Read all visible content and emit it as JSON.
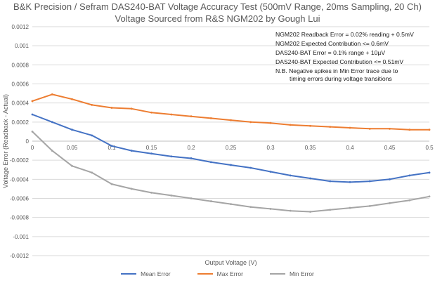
{
  "chart_data": {
    "type": "line",
    "title": "B&K Precision / Sefram DAS240-BAT Voltage Accuracy Test (500mV Range, 20ms Sampling, 20 Ch)",
    "subtitle": "Voltage Sourced from R&S NGM202 by Gough Lui",
    "xlabel": "Output Voltage (V)",
    "ylabel": "Voltage Error (Readback - Actual)",
    "xlim": [
      0,
      0.5
    ],
    "ylim": [
      -0.0012,
      0.0012
    ],
    "x_ticks": [
      "0",
      "0.05",
      "0.1",
      "0.15",
      "0.2",
      "0.25",
      "0.3",
      "0.35",
      "0.4",
      "0.45",
      "0.5"
    ],
    "y_ticks": [
      "0.0012",
      "0.001",
      "0.0008",
      "0.0006",
      "0.0004",
      "0.0002",
      "0",
      "-0.0002",
      "-0.0004",
      "-0.0006",
      "-0.0008",
      "-0.001",
      "-0.0012"
    ],
    "grid": true,
    "legend_position": "bottom",
    "annotations": [
      "NGM202 Readback Error = 0.02% reading + 0.5mV",
      "NGM202 Expected Contribution <= 0.6mV",
      "DAS240-BAT Error = 0.1% range + 10µV",
      "DAS240-BAT Expected Contribution <= 0.51mV",
      "N.B. Negative spikes in Min Error trace due to",
      "timing errors during voltage transitions"
    ],
    "series": [
      {
        "name": "Mean Error",
        "color": "#4472C4",
        "x": [
          0,
          0.025,
          0.05,
          0.075,
          0.1,
          0.125,
          0.15,
          0.175,
          0.2,
          0.225,
          0.25,
          0.275,
          0.3,
          0.325,
          0.35,
          0.375,
          0.4,
          0.425,
          0.45,
          0.475,
          0.5
        ],
        "values": [
          0.00028,
          0.0002,
          0.00012,
          6e-05,
          -5e-05,
          -0.0001,
          -0.00013,
          -0.00016,
          -0.00018,
          -0.00022,
          -0.00025,
          -0.00028,
          -0.00032,
          -0.00036,
          -0.00039,
          -0.00042,
          -0.00043,
          -0.00042,
          -0.0004,
          -0.00036,
          -0.00033
        ]
      },
      {
        "name": "Max Error",
        "color": "#ED7D31",
        "x": [
          0,
          0.025,
          0.05,
          0.075,
          0.1,
          0.125,
          0.15,
          0.175,
          0.2,
          0.225,
          0.25,
          0.275,
          0.3,
          0.325,
          0.35,
          0.375,
          0.4,
          0.425,
          0.45,
          0.475,
          0.5
        ],
        "values": [
          0.00042,
          0.00049,
          0.00044,
          0.00038,
          0.00035,
          0.00034,
          0.0003,
          0.00028,
          0.00026,
          0.00024,
          0.00022,
          0.0002,
          0.00019,
          0.00017,
          0.00016,
          0.00015,
          0.00014,
          0.00013,
          0.00013,
          0.00012,
          0.00012
        ]
      },
      {
        "name": "Min Error",
        "color": "#A5A5A5",
        "x": [
          0,
          0.025,
          0.05,
          0.075,
          0.1,
          0.125,
          0.15,
          0.175,
          0.2,
          0.225,
          0.25,
          0.275,
          0.3,
          0.325,
          0.35,
          0.375,
          0.4,
          0.425,
          0.45,
          0.475,
          0.5
        ],
        "values": [
          0.0001,
          -0.0001,
          -0.00026,
          -0.00033,
          -0.00045,
          -0.0005,
          -0.00054,
          -0.00057,
          -0.0006,
          -0.00063,
          -0.00066,
          -0.00069,
          -0.00071,
          -0.00073,
          -0.00074,
          -0.00072,
          -0.0007,
          -0.00068,
          -0.00065,
          -0.00062,
          -0.00058
        ]
      }
    ]
  }
}
